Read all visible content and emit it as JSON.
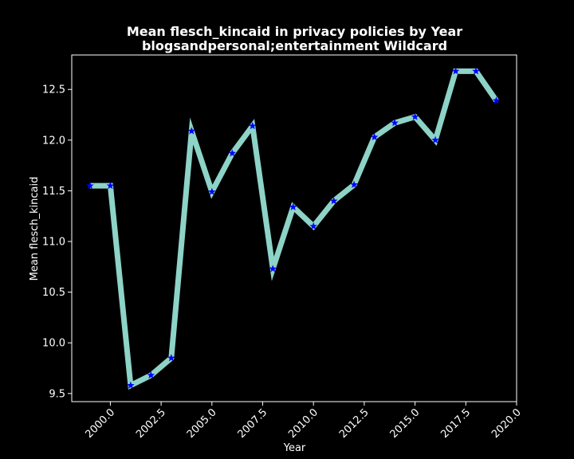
{
  "chart_data": {
    "type": "line",
    "title_line1": "Mean flesch_kincaid in privacy policies by Year",
    "title_line2": "blogsandpersonal;entertainment Wildcard",
    "xlabel": "Year",
    "ylabel": "Mean flesch_kincaid",
    "xlim": [
      1998.1,
      2020.0
    ],
    "ylim": [
      9.42,
      12.84
    ],
    "xticks": [
      2000.0,
      2002.5,
      2005.0,
      2007.5,
      2010.0,
      2012.5,
      2015.0,
      2017.5,
      2020.0
    ],
    "xtick_labels": [
      "2000.0",
      "2002.5",
      "2005.0",
      "2007.5",
      "2010.0",
      "2012.5",
      "2015.0",
      "2017.5",
      "2020.0"
    ],
    "yticks": [
      9.5,
      10.0,
      10.5,
      11.0,
      11.5,
      12.0,
      12.5
    ],
    "ytick_labels": [
      "9.5",
      "10.0",
      "10.5",
      "11.0",
      "11.5",
      "12.0",
      "12.5"
    ],
    "series": [
      {
        "x": [
          1999,
          2000,
          2001,
          2002,
          2003,
          2004,
          2005,
          2006,
          2007,
          2008,
          2009,
          2010,
          2011,
          2012,
          2013,
          2014,
          2015,
          2016,
          2017,
          2018,
          2019
        ],
        "values": [
          11.55,
          11.55,
          9.58,
          9.68,
          9.85,
          12.09,
          11.49,
          11.87,
          12.14,
          10.73,
          11.34,
          11.15,
          11.4,
          11.56,
          12.03,
          12.17,
          12.23,
          12.0,
          12.68,
          12.68,
          12.39
        ],
        "line_color": "#8dd3c7",
        "marker_color": "#0000ff",
        "marker": "star"
      }
    ],
    "grid": false,
    "background": "#000000",
    "foreground": "#ffffff"
  }
}
